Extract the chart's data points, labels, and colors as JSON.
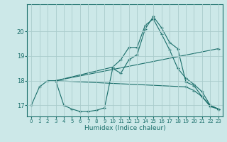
{
  "xlabel": "Humidex (Indice chaleur)",
  "bg_color": "#cce8e8",
  "grid_color": "#aacccc",
  "line_color": "#1a6e6a",
  "xlim": [
    -0.5,
    23.5
  ],
  "ylim": [
    16.55,
    21.1
  ],
  "yticks": [
    17,
    18,
    19,
    20
  ],
  "xticks": [
    0,
    1,
    2,
    3,
    4,
    5,
    6,
    7,
    8,
    9,
    10,
    11,
    12,
    13,
    14,
    15,
    16,
    17,
    18,
    19,
    20,
    21,
    22,
    23
  ],
  "lines": [
    {
      "x": [
        0,
        1,
        2,
        3,
        4,
        5,
        6,
        7,
        8,
        9,
        10,
        11,
        12,
        13,
        14,
        15,
        16,
        17,
        18,
        19,
        20,
        21,
        22,
        23
      ],
      "y": [
        17.0,
        17.75,
        18.0,
        18.0,
        17.0,
        16.85,
        16.75,
        16.75,
        16.8,
        16.9,
        18.5,
        18.3,
        18.85,
        19.05,
        20.1,
        20.6,
        20.15,
        19.55,
        19.3,
        17.95,
        17.8,
        17.35,
        16.95,
        16.85
      ]
    },
    {
      "x": [
        3,
        10,
        11,
        12,
        13,
        14,
        15,
        16,
        17,
        18,
        19,
        20,
        21,
        22,
        23
      ],
      "y": [
        18.0,
        18.55,
        18.85,
        19.35,
        19.35,
        20.25,
        20.5,
        19.9,
        19.25,
        18.5,
        18.1,
        17.85,
        17.55,
        17.0,
        16.85
      ]
    },
    {
      "x": [
        3,
        23
      ],
      "y": [
        18.0,
        19.3
      ]
    },
    {
      "x": [
        3,
        19,
        20,
        21,
        22,
        23
      ],
      "y": [
        18.0,
        17.75,
        17.6,
        17.35,
        17.0,
        16.85
      ]
    }
  ]
}
